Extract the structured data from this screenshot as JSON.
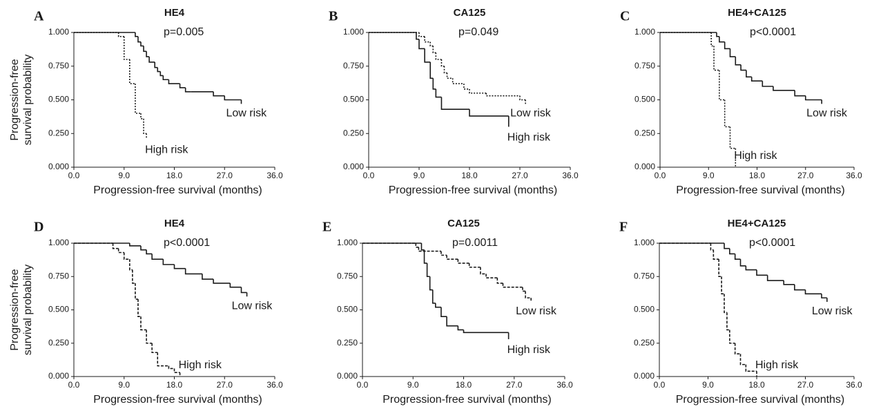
{
  "chart_data": [
    {
      "type": "step",
      "label": "A",
      "title": "HE4",
      "annotation": "p=0.005",
      "xlabel": "Progression-free survival (months)",
      "ylabel": [
        "Progression-free",
        "survival probability"
      ],
      "xlim": [
        0,
        36
      ],
      "ylim": [
        0,
        1
      ],
      "xticks": [
        {
          "value": 0,
          "label": "0.0"
        },
        {
          "value": 9,
          "label": "9.0"
        },
        {
          "value": 18,
          "label": "18.0"
        },
        {
          "value": 27,
          "label": "27.0"
        },
        {
          "value": 36,
          "label": "36.0"
        }
      ],
      "yticks": [
        {
          "value": 0,
          "label": "0.000"
        },
        {
          "value": 0.25,
          "label": "0.250"
        },
        {
          "value": 0.5,
          "label": "0.500"
        },
        {
          "value": 0.75,
          "label": "0.750"
        },
        {
          "value": 1,
          "label": "1.000"
        }
      ],
      "series": [
        {
          "name": "Low risk",
          "color": "#1a1a1a",
          "style": "solid",
          "x": [
            0,
            11,
            11.5,
            12,
            12.5,
            13,
            13.5,
            14.5,
            15,
            15.5,
            16,
            17,
            19,
            20,
            21,
            25,
            27,
            30
          ],
          "values": [
            1,
            0.97,
            0.93,
            0.9,
            0.86,
            0.82,
            0.78,
            0.74,
            0.71,
            0.68,
            0.65,
            0.62,
            0.59,
            0.56,
            0.56,
            0.53,
            0.5,
            0.47
          ]
        },
        {
          "name": "High risk",
          "color": "#1a1a1a",
          "style": "dotted",
          "x": [
            0,
            8,
            9,
            10,
            11,
            12,
            12.5,
            13
          ],
          "values": [
            1,
            0.97,
            0.8,
            0.62,
            0.4,
            0.36,
            0.25,
            0.21
          ]
        }
      ]
    },
    {
      "type": "step",
      "label": "B",
      "title": "CA125",
      "annotation": "p=0.049",
      "xlabel": "Progression-free survival (months)",
      "xlim": [
        0,
        36
      ],
      "ylim": [
        0,
        1
      ],
      "xticks": [
        {
          "value": 0,
          "label": "0.0"
        },
        {
          "value": 9,
          "label": "9.0"
        },
        {
          "value": 18,
          "label": "18.0"
        },
        {
          "value": 27,
          "label": "27.0"
        },
        {
          "value": 36,
          "label": "36.0"
        }
      ],
      "yticks": [
        {
          "value": 0,
          "label": "0.000"
        },
        {
          "value": 0.25,
          "label": "0.250"
        },
        {
          "value": 0.5,
          "label": "0.500"
        },
        {
          "value": 0.75,
          "label": "0.750"
        },
        {
          "value": 1,
          "label": "1.000"
        }
      ],
      "series": [
        {
          "name": "Low risk",
          "color": "#1a1a1a",
          "style": "dotted",
          "x": [
            0,
            9,
            10,
            11,
            11.5,
            12,
            13,
            13.5,
            14,
            15,
            17,
            18,
            21,
            27,
            28
          ],
          "values": [
            1,
            0.97,
            0.93,
            0.9,
            0.85,
            0.8,
            0.75,
            0.7,
            0.66,
            0.62,
            0.58,
            0.55,
            0.53,
            0.5,
            0.47
          ]
        },
        {
          "name": "High risk",
          "color": "#1a1a1a",
          "style": "solid",
          "x": [
            0,
            8.5,
            9,
            10,
            11,
            11.5,
            12,
            13,
            18,
            25
          ],
          "values": [
            1,
            0.95,
            0.88,
            0.78,
            0.66,
            0.58,
            0.52,
            0.43,
            0.38,
            0.3
          ]
        }
      ]
    },
    {
      "type": "step",
      "label": "C",
      "title": "HE4+CA125",
      "annotation": "p<0.0001",
      "xlabel": "Progression-free survival (months)",
      "xlim": [
        0,
        36
      ],
      "ylim": [
        0,
        1
      ],
      "xticks": [
        {
          "value": 0,
          "label": "0.0"
        },
        {
          "value": 9,
          "label": "9.0"
        },
        {
          "value": 18,
          "label": "18.0"
        },
        {
          "value": 27,
          "label": "27.0"
        },
        {
          "value": 36,
          "label": "36.0"
        }
      ],
      "yticks": [
        {
          "value": 0,
          "label": "0.000"
        },
        {
          "value": 0.25,
          "label": "0.250"
        },
        {
          "value": 0.5,
          "label": "0.500"
        },
        {
          "value": 0.75,
          "label": "0.750"
        },
        {
          "value": 1,
          "label": "1.000"
        }
      ],
      "series": [
        {
          "name": "Low risk",
          "color": "#1a1a1a",
          "style": "solid",
          "x": [
            0,
            10.5,
            11,
            12,
            13,
            14,
            15,
            16,
            17,
            19,
            21,
            25,
            27,
            30
          ],
          "values": [
            1,
            0.97,
            0.93,
            0.88,
            0.82,
            0.76,
            0.72,
            0.67,
            0.64,
            0.6,
            0.57,
            0.53,
            0.5,
            0.47
          ]
        },
        {
          "name": "High risk",
          "color": "#1a1a1a",
          "style": "dotted",
          "x": [
            0,
            9.5,
            10,
            11,
            12,
            13,
            14
          ],
          "values": [
            1,
            0.9,
            0.72,
            0.5,
            0.3,
            0.14,
            0
          ]
        }
      ]
    },
    {
      "type": "step",
      "label": "D",
      "title": "HE4",
      "annotation": "p<0.0001",
      "xlabel": "Progression-free survival (months)",
      "ylabel": [
        "Progression-free",
        "survival probability"
      ],
      "xlim": [
        0,
        36
      ],
      "ylim": [
        0,
        1
      ],
      "xticks": [
        {
          "value": 0,
          "label": "0.0"
        },
        {
          "value": 9,
          "label": "9.0"
        },
        {
          "value": 18,
          "label": "18.0"
        },
        {
          "value": 27,
          "label": "27.0"
        },
        {
          "value": 36,
          "label": "36.0"
        }
      ],
      "yticks": [
        {
          "value": 0,
          "label": "0.000"
        },
        {
          "value": 0.25,
          "label": "0.250"
        },
        {
          "value": 0.5,
          "label": "0.500"
        },
        {
          "value": 0.75,
          "label": "0.750"
        },
        {
          "value": 1,
          "label": "1.000"
        }
      ],
      "series": [
        {
          "name": "Low risk",
          "color": "#1a1a1a",
          "style": "solid",
          "x": [
            0,
            10,
            12,
            13,
            14,
            16,
            18,
            20,
            23,
            25,
            28,
            30,
            31
          ],
          "values": [
            1,
            0.98,
            0.95,
            0.92,
            0.88,
            0.84,
            0.81,
            0.77,
            0.73,
            0.7,
            0.67,
            0.63,
            0.6
          ]
        },
        {
          "name": "High risk",
          "color": "#1a1a1a",
          "style": "dashed",
          "x": [
            0,
            7,
            8,
            9,
            10,
            10.5,
            11,
            11.5,
            12,
            13,
            14,
            15,
            17,
            18,
            19
          ],
          "values": [
            1,
            0.96,
            0.93,
            0.88,
            0.8,
            0.7,
            0.58,
            0.45,
            0.35,
            0.25,
            0.18,
            0.08,
            0.06,
            0.03,
            0.01
          ]
        }
      ]
    },
    {
      "type": "step",
      "label": "E",
      "title": "CA125",
      "annotation": "p=0.0011",
      "xlabel": "Progression-free survival (months)",
      "xlim": [
        0,
        36
      ],
      "ylim": [
        0,
        1
      ],
      "xticks": [
        {
          "value": 0,
          "label": "0.0"
        },
        {
          "value": 9,
          "label": "9.0"
        },
        {
          "value": 18,
          "label": "18.0"
        },
        {
          "value": 27,
          "label": "27.0"
        },
        {
          "value": 36,
          "label": "36.0"
        }
      ],
      "yticks": [
        {
          "value": 0,
          "label": "0.000"
        },
        {
          "value": 0.25,
          "label": "0.250"
        },
        {
          "value": 0.5,
          "label": "0.500"
        },
        {
          "value": 0.75,
          "label": "0.750"
        },
        {
          "value": 1,
          "label": "1.000"
        }
      ],
      "series": [
        {
          "name": "Low risk",
          "color": "#1a1a1a",
          "style": "dashed",
          "x": [
            0,
            9.5,
            10,
            14,
            15,
            17,
            19,
            21,
            22,
            24,
            25,
            28.5,
            29,
            30
          ],
          "values": [
            1,
            0.97,
            0.94,
            0.91,
            0.88,
            0.85,
            0.82,
            0.77,
            0.74,
            0.7,
            0.67,
            0.64,
            0.59,
            0.56
          ]
        },
        {
          "name": "High risk",
          "color": "#1a1a1a",
          "style": "solid",
          "x": [
            0,
            10.5,
            11,
            11.5,
            12,
            12.5,
            13,
            14,
            15,
            17,
            18,
            26
          ],
          "values": [
            1,
            0.95,
            0.85,
            0.75,
            0.65,
            0.55,
            0.52,
            0.45,
            0.38,
            0.35,
            0.33,
            0.28
          ]
        }
      ]
    },
    {
      "type": "step",
      "label": "F",
      "title": "HE4+CA125",
      "annotation": "p<0.0001",
      "xlabel": "Progression-free survival (months)",
      "xlim": [
        0,
        36
      ],
      "ylim": [
        0,
        1
      ],
      "xticks": [
        {
          "value": 0,
          "label": "0.0"
        },
        {
          "value": 9,
          "label": "9.0"
        },
        {
          "value": 18,
          "label": "18.0"
        },
        {
          "value": 27,
          "label": "27.0"
        },
        {
          "value": 36,
          "label": "36.0"
        }
      ],
      "yticks": [
        {
          "value": 0,
          "label": "0.000"
        },
        {
          "value": 0.25,
          "label": "0.250"
        },
        {
          "value": 0.5,
          "label": "0.500"
        },
        {
          "value": 0.75,
          "label": "0.750"
        },
        {
          "value": 1,
          "label": "1.000"
        }
      ],
      "series": [
        {
          "name": "Low risk",
          "color": "#1a1a1a",
          "style": "solid",
          "x": [
            0,
            12,
            13,
            14,
            15,
            16,
            18,
            20,
            23,
            25,
            27,
            30,
            31
          ],
          "values": [
            1,
            0.96,
            0.92,
            0.88,
            0.83,
            0.8,
            0.76,
            0.72,
            0.69,
            0.65,
            0.62,
            0.59,
            0.56
          ]
        },
        {
          "name": "High risk",
          "color": "#1a1a1a",
          "style": "dashed",
          "x": [
            0,
            9.5,
            10,
            11,
            11.5,
            12,
            12.5,
            13,
            14,
            15,
            16,
            18
          ],
          "values": [
            1,
            0.95,
            0.88,
            0.75,
            0.62,
            0.48,
            0.35,
            0.25,
            0.17,
            0.09,
            0.04,
            0
          ]
        }
      ]
    }
  ]
}
